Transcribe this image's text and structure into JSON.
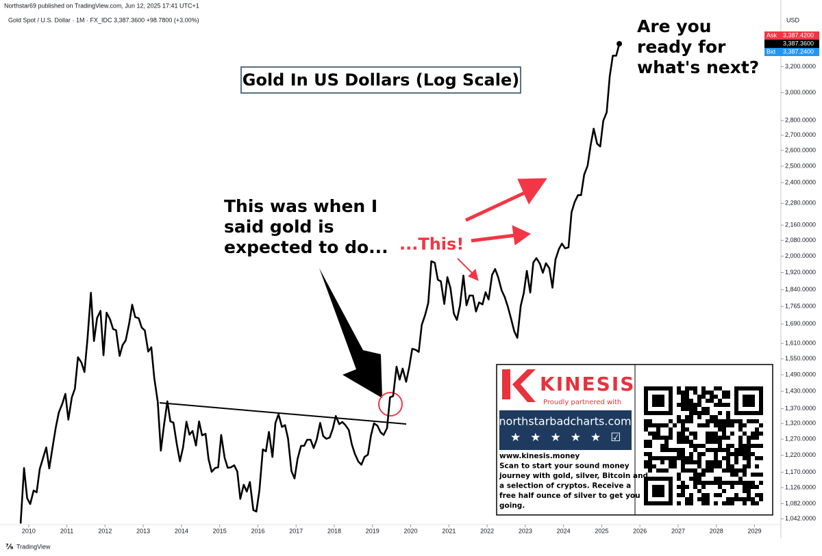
{
  "chart_data": {
    "type": "line",
    "header": {
      "published": "Northstar69 published on TradingView.com, Jun 12, 2025 17:41 UTC+1",
      "symbol_info": "Gold Spot / U.S. Dollar · 1M · FX_IDC  3,387.3600  +98.7800 (+3.00%)",
      "currency": "USD",
      "ask_label": "Ask",
      "ask": "3,387.4200",
      "last": "3,387.3600",
      "bid_label": "Bid",
      "bid": "3,387.2400",
      "brand": "TradingView"
    },
    "title": "Gold In US Dollars (Log Scale)",
    "annotations": {
      "question": [
        "Are you",
        "ready for",
        "what's next?"
      ],
      "claim": [
        "This was when I",
        "said gold is",
        "expected to do..."
      ],
      "this": "...This!"
    },
    "ad": {
      "logo": "KINESIS",
      "partner": "Proudly partnered with",
      "site": "northstarbadcharts.com",
      "text": [
        "www.kinesis.money",
        "Scan to start your sound money",
        "journey with gold, silver, Bitcoin and",
        "a selection of cryptos. Receive a",
        "free half ounce of silver to get you",
        "going."
      ]
    },
    "log_scale": true,
    "color": "#000000",
    "xlim": [
      2009.25,
      2029.69
    ],
    "xticks": [
      2010,
      2011,
      2012,
      2013,
      2014,
      2015,
      2016,
      2017,
      2018,
      2019,
      2020,
      2021,
      2022,
      2023,
      2024,
      2025,
      2026,
      2027,
      2028,
      2029
    ],
    "ylim": [
      1005,
      3650
    ],
    "yticks": [
      {
        "value": 1042,
        "label": "1,042.0000"
      },
      {
        "value": 1082,
        "label": "1,082.0000"
      },
      {
        "value": 1126,
        "label": "1,126.0000"
      },
      {
        "value": 1170,
        "label": "1,170.0000"
      },
      {
        "value": 1220,
        "label": "1,220.0000"
      },
      {
        "value": 1270,
        "label": "1,270.0000"
      },
      {
        "value": 1320,
        "label": "1,320.0000"
      },
      {
        "value": 1370,
        "label": "1,370.0000"
      },
      {
        "value": 1430,
        "label": "1,430.0000"
      },
      {
        "value": 1490,
        "label": "1,490.0000"
      },
      {
        "value": 1550,
        "label": "1,550.0000"
      },
      {
        "value": 1610,
        "label": "1,610.0000"
      },
      {
        "value": 1690,
        "label": "1,690.0000"
      },
      {
        "value": 1765,
        "label": "1,765.0000"
      },
      {
        "value": 1840,
        "label": "1,840.0000"
      },
      {
        "value": 1920,
        "label": "1,920.0000"
      },
      {
        "value": 2000,
        "label": "2,000.0000"
      },
      {
        "value": 2080,
        "label": "2,080.0000"
      },
      {
        "value": 2160,
        "label": "2,160.0000"
      },
      {
        "value": 2280,
        "label": "2,280.0000"
      },
      {
        "value": 2400,
        "label": "2,400.0000"
      },
      {
        "value": 2500,
        "label": "2,500.0000"
      },
      {
        "value": 2600,
        "label": "2,600.0000"
      },
      {
        "value": 2700,
        "label": "2,700.0000"
      },
      {
        "value": 2800,
        "label": "2,800.0000"
      },
      {
        "value": 3000,
        "label": "3,000.0000"
      },
      {
        "value": 3200,
        "label": "3,200.0000"
      }
    ],
    "x": [
      2009.79,
      2009.88,
      2009.96,
      2010.04,
      2010.13,
      2010.21,
      2010.29,
      2010.38,
      2010.46,
      2010.54,
      2010.63,
      2010.71,
      2010.79,
      2010.88,
      2010.96,
      2011.04,
      2011.13,
      2011.21,
      2011.29,
      2011.38,
      2011.46,
      2011.54,
      2011.63,
      2011.71,
      2011.79,
      2011.88,
      2011.96,
      2012.04,
      2012.13,
      2012.21,
      2012.29,
      2012.38,
      2012.46,
      2012.54,
      2012.63,
      2012.71,
      2012.79,
      2012.88,
      2012.96,
      2013.04,
      2013.13,
      2013.21,
      2013.29,
      2013.38,
      2013.46,
      2013.54,
      2013.63,
      2013.71,
      2013.79,
      2013.88,
      2013.96,
      2014.04,
      2014.13,
      2014.21,
      2014.29,
      2014.38,
      2014.46,
      2014.54,
      2014.63,
      2014.71,
      2014.79,
      2014.88,
      2014.96,
      2015.04,
      2015.13,
      2015.21,
      2015.29,
      2015.38,
      2015.46,
      2015.54,
      2015.63,
      2015.71,
      2015.79,
      2015.88,
      2015.96,
      2016.04,
      2016.13,
      2016.21,
      2016.29,
      2016.38,
      2016.46,
      2016.54,
      2016.63,
      2016.71,
      2016.79,
      2016.88,
      2016.96,
      2017.04,
      2017.13,
      2017.21,
      2017.29,
      2017.38,
      2017.46,
      2017.54,
      2017.63,
      2017.71,
      2017.79,
      2017.88,
      2017.96,
      2018.04,
      2018.13,
      2018.21,
      2018.29,
      2018.38,
      2018.46,
      2018.54,
      2018.63,
      2018.71,
      2018.79,
      2018.88,
      2018.96,
      2019.04,
      2019.13,
      2019.21,
      2019.29,
      2019.38,
      2019.46,
      2019.54,
      2019.63,
      2019.71,
      2019.79,
      2019.88,
      2019.96,
      2020.04,
      2020.13,
      2020.21,
      2020.29,
      2020.38,
      2020.46,
      2020.54,
      2020.63,
      2020.71,
      2020.79,
      2020.88,
      2020.96,
      2021.04,
      2021.13,
      2021.21,
      2021.29,
      2021.38,
      2021.46,
      2021.54,
      2021.63,
      2021.71,
      2021.79,
      2021.88,
      2021.96,
      2022.04,
      2022.13,
      2022.21,
      2022.29,
      2022.38,
      2022.46,
      2022.54,
      2022.63,
      2022.71,
      2022.79,
      2022.88,
      2022.96,
      2023.04,
      2023.13,
      2023.21,
      2023.29,
      2023.38,
      2023.46,
      2023.54,
      2023.63,
      2023.71,
      2023.79,
      2023.88,
      2023.96,
      2024.04,
      2024.13,
      2024.21,
      2024.29,
      2024.38,
      2024.46,
      2024.54,
      2024.63,
      2024.71,
      2024.79,
      2024.88,
      2024.96,
      2025.04,
      2025.13,
      2025.21,
      2025.29,
      2025.38,
      2025.46
    ],
    "values": [
      1030,
      1182,
      1097,
      1081,
      1118,
      1113,
      1179,
      1213,
      1244,
      1181,
      1248,
      1307,
      1357,
      1386,
      1421,
      1333,
      1409,
      1439,
      1556,
      1536,
      1500,
      1628,
      1826,
      1620,
      1715,
      1746,
      1564,
      1738,
      1710,
      1669,
      1664,
      1561,
      1604,
      1622,
      1691,
      1773,
      1719,
      1714,
      1675,
      1663,
      1578,
      1595,
      1476,
      1393,
      1234,
      1313,
      1395,
      1327,
      1323,
      1253,
      1202,
      1244,
      1326,
      1284,
      1296,
      1250,
      1327,
      1282,
      1287,
      1208,
      1171,
      1182,
      1184,
      1283,
      1213,
      1183,
      1184,
      1190,
      1172,
      1095,
      1134,
      1115,
      1142,
      1065,
      1061,
      1118,
      1238,
      1232,
      1293,
      1215,
      1322,
      1351,
      1309,
      1315,
      1272,
      1173,
      1152,
      1210,
      1249,
      1249,
      1268,
      1268,
      1242,
      1269,
      1322,
      1280,
      1271,
      1275,
      1303,
      1345,
      1318,
      1325,
      1315,
      1299,
      1253,
      1224,
      1201,
      1192,
      1215,
      1222,
      1282,
      1321,
      1313,
      1292,
      1283,
      1305,
      1409,
      1413,
      1520,
      1472,
      1513,
      1464,
      1517,
      1589,
      1585,
      1577,
      1686,
      1730,
      1781,
      1975,
      1967,
      1886,
      1879,
      1776,
      1898,
      1847,
      1734,
      1707,
      1769,
      1906,
      1770,
      1814,
      1813,
      1743,
      1783,
      1774,
      1829,
      1796,
      1909,
      1937,
      1897,
      1837,
      1807,
      1766,
      1711,
      1660,
      1633,
      1768,
      1824,
      1928,
      1827,
      1969,
      1990,
      1963,
      1919,
      1965,
      1940,
      1849,
      1983,
      2036,
      2063,
      2039,
      2044,
      2230,
      2286,
      2327,
      2327,
      2448,
      2503,
      2635,
      2744,
      2643,
      2625,
      2798,
      2858,
      3124,
      3289,
      3289,
      3387.36
    ]
  }
}
